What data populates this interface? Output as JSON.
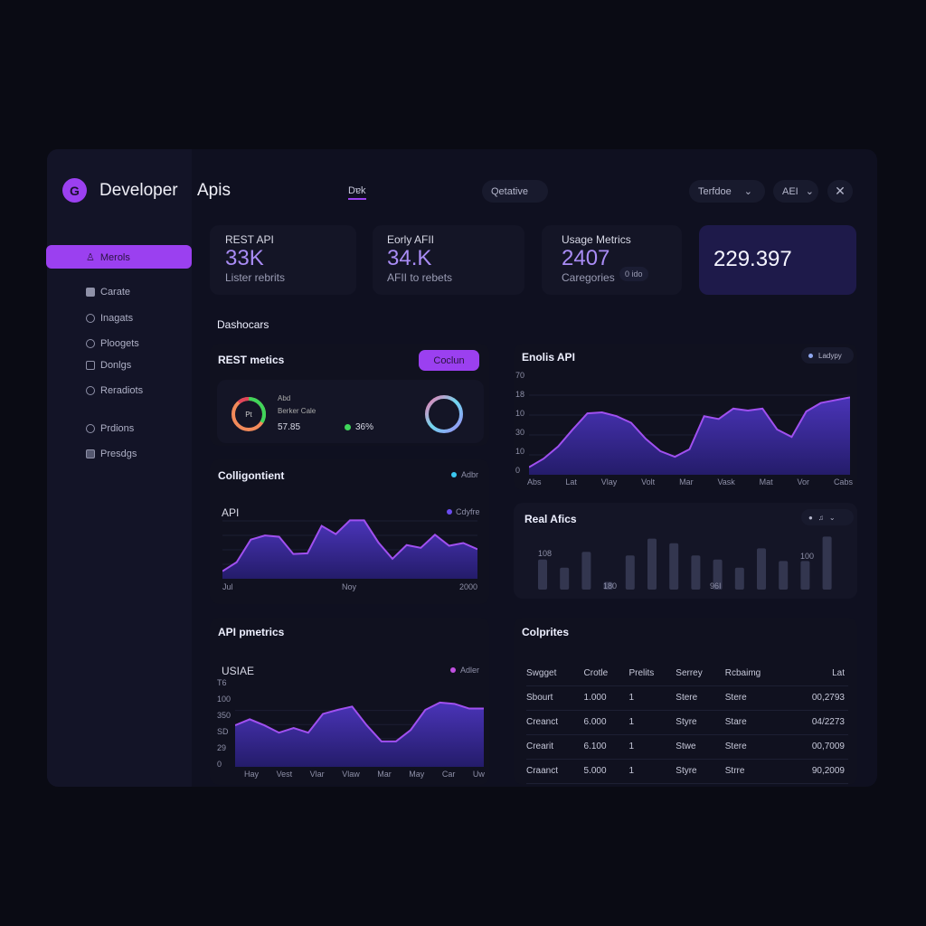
{
  "header": {
    "logo_letter": "G",
    "title": "Developer",
    "subtitle": "Apis",
    "tab": "Dɐk",
    "search": "Qetative",
    "dropdown1": "Terfdoe",
    "dropdown2": "AEI",
    "close_icon": "close-icon"
  },
  "sidebar": {
    "items": [
      {
        "label": "Merols",
        "icon": "user-icon",
        "active": true
      },
      {
        "label": "Carate",
        "icon": "lock-icon"
      },
      {
        "label": "Inagats",
        "icon": "drop-icon"
      },
      {
        "label": "Ploogets",
        "icon": "search-icon"
      },
      {
        "label": "Donlgs",
        "icon": "document-icon"
      },
      {
        "label": "Reradiots",
        "icon": "globe-icon"
      },
      {
        "label": "Prdions",
        "icon": "circle-icon"
      },
      {
        "label": "Presdgs",
        "icon": "image-icon"
      }
    ]
  },
  "stats": [
    {
      "label": "REST API",
      "value": "33K",
      "sub": "Lister rebrits"
    },
    {
      "label": "Eorly AFII",
      "value": "34.K",
      "sub": "AFII to rebets"
    },
    {
      "label": "Usage Metrics",
      "value": "2407",
      "sub": "Caregories",
      "badge": "0 ido"
    },
    {
      "value": "229.397"
    }
  ],
  "section_title": "Dashocars",
  "rest": {
    "title": "REST metics",
    "button": "Coclun",
    "line1": "Abd",
    "line2": "Berker Cale",
    "value": "57.85",
    "center": "Pt",
    "pct": "36%",
    "accent": "#9b40f0"
  },
  "collig": {
    "title": "Colligontient",
    "legend": "Adbr",
    "inner_title": "API",
    "inner_legend": "Cdyfre",
    "x_labels": [
      "Jul",
      "Noy",
      "2000"
    ]
  },
  "enolis": {
    "title": "Enolis API",
    "legend": "Ladypy",
    "y_labels": [
      "70",
      "18",
      "10",
      "30",
      "10",
      "0"
    ],
    "x_labels": [
      "Abs",
      "Lat",
      "Vlay",
      "Volt",
      "Mar",
      "Vask",
      "Mat",
      "Vor",
      "Cabs"
    ]
  },
  "real": {
    "title": "Real Afics",
    "labels": [
      "108",
      "180",
      "96I",
      "100"
    ]
  },
  "apim": {
    "title": "API pmetrics",
    "inner_title": "USIAE",
    "legend": "Adler",
    "y_labels": [
      "T6",
      "100",
      "350",
      "SD",
      "29",
      "0"
    ],
    "x_labels": [
      "Hay",
      "Vest",
      "Vlar",
      "Vlaw",
      "Mar",
      "May",
      "Car",
      "Uw"
    ]
  },
  "table": {
    "title": "Colprites",
    "columns": [
      "Swgget",
      "Crotle",
      "Prelits",
      "Serrey",
      "Rcbaimg",
      "Lat"
    ],
    "rows": [
      [
        "Sbourt",
        "1.000",
        "1",
        "Stere",
        "Stere",
        "00,2793"
      ],
      [
        "Creanct",
        "6.000",
        "1",
        "Styre",
        "Stare",
        "04/2273"
      ],
      [
        "Crearit",
        "6.100",
        "1",
        "Stwe",
        "Stere",
        "00,7009"
      ],
      [
        "Craanct",
        "5.000",
        "1",
        "Styre",
        "Strre",
        "90,2009"
      ]
    ]
  },
  "chart_data": [
    {
      "type": "area",
      "title": "API",
      "values": [
        11,
        24,
        57,
        63,
        61,
        36,
        37,
        77,
        65,
        85,
        85,
        53,
        29,
        49,
        45,
        64,
        48,
        52,
        43
      ],
      "ylim": [
        0,
        100
      ]
    },
    {
      "type": "area",
      "title": "Enolis API",
      "values": [
        8,
        17,
        30,
        48,
        65,
        66,
        62,
        55,
        38,
        25,
        19,
        27,
        62,
        59,
        70,
        68,
        70,
        48,
        40,
        67,
        76,
        79,
        82
      ],
      "ylim": [
        0,
        100
      ]
    },
    {
      "type": "bar",
      "title": "Real Afics",
      "values": [
        59,
        43,
        74,
        15,
        67,
        100,
        91,
        67,
        59,
        43,
        81,
        56,
        56,
        104
      ],
      "ylim": [
        0,
        110
      ]
    },
    {
      "type": "area",
      "title": "USIAE",
      "values": [
        62,
        71,
        62,
        51,
        58,
        51,
        79,
        85,
        90,
        62,
        38,
        38,
        55,
        85,
        96,
        94,
        87,
        87
      ],
      "ylim": [
        0,
        100
      ]
    }
  ]
}
